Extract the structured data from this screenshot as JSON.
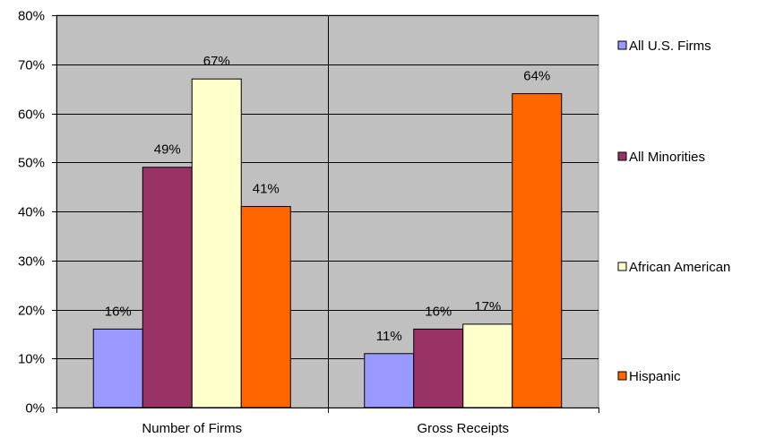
{
  "chart_data": {
    "type": "bar",
    "title": "",
    "xlabel": "",
    "ylabel": "",
    "categories": [
      "Number of Firms",
      "Gross Receipts"
    ],
    "series": [
      {
        "name": "All U.S. Firms",
        "values": [
          16,
          11
        ],
        "labels": [
          "16%",
          "11%"
        ],
        "color": "#9999ff"
      },
      {
        "name": "All Minorities",
        "values": [
          49,
          16
        ],
        "labels": [
          "49%",
          "16%"
        ],
        "color": "#993366"
      },
      {
        "name": "African American",
        "values": [
          67,
          17
        ],
        "labels": [
          "67%",
          "17%"
        ],
        "color": "#ffffcc"
      },
      {
        "name": "Hispanic",
        "values": [
          41,
          64
        ],
        "labels": [
          "41%",
          "64%"
        ],
        "color": "#ff6600"
      }
    ],
    "ylim": [
      0,
      80
    ],
    "yticks": [
      0,
      10,
      20,
      30,
      40,
      50,
      60,
      70,
      80
    ],
    "ytick_labels": [
      "0%",
      "10%",
      "20%",
      "30%",
      "40%",
      "50%",
      "60%",
      "70%",
      "80%"
    ],
    "grid": true,
    "plot_background": "#c0c0c0",
    "legend_position": "right"
  }
}
